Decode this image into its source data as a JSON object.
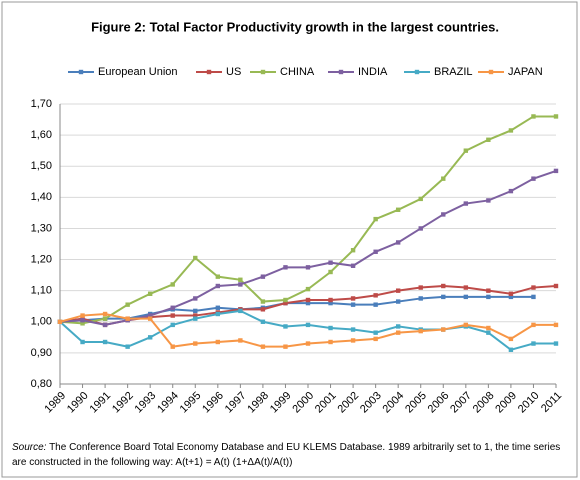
{
  "chart_data": {
    "type": "line",
    "title": "Figure 2: Total Factor Productivity growth in the largest countries.",
    "categories": [
      "1989",
      "1990",
      "1991",
      "1992",
      "1993",
      "1994",
      "1995",
      "1996",
      "1997",
      "1998",
      "1999",
      "2000",
      "2001",
      "2002",
      "2003",
      "2004",
      "2005",
      "2006",
      "2007",
      "2008",
      "2009",
      "2010",
      "2011"
    ],
    "series": [
      {
        "name": "European Union",
        "color": "#4a7ebb",
        "values": [
          1.0,
          1.005,
          1.01,
          1.01,
          1.025,
          1.04,
          1.035,
          1.045,
          1.04,
          1.045,
          1.06,
          1.06,
          1.06,
          1.055,
          1.055,
          1.065,
          1.075,
          1.08,
          1.08,
          1.08,
          1.08,
          1.08,
          null
        ]
      },
      {
        "name": "US",
        "color": "#be4b48",
        "values": [
          1.0,
          1.01,
          0.99,
          1.005,
          1.015,
          1.02,
          1.02,
          1.03,
          1.04,
          1.04,
          1.06,
          1.07,
          1.07,
          1.075,
          1.085,
          1.1,
          1.11,
          1.115,
          1.11,
          1.1,
          1.09,
          1.11,
          1.115
        ]
      },
      {
        "name": "CHINA",
        "color": "#98b954",
        "values": [
          1.0,
          0.995,
          1.01,
          1.055,
          1.09,
          1.12,
          1.205,
          1.145,
          1.135,
          1.065,
          1.07,
          1.105,
          1.16,
          1.23,
          1.33,
          1.36,
          1.395,
          1.46,
          1.55,
          1.585,
          1.615,
          1.66,
          1.66
        ]
      },
      {
        "name": "INDIA",
        "color": "#7d60a0",
        "values": [
          1.0,
          1.005,
          0.99,
          1.005,
          1.02,
          1.045,
          1.075,
          1.115,
          1.12,
          1.145,
          1.175,
          1.175,
          1.19,
          1.18,
          1.225,
          1.255,
          1.3,
          1.345,
          1.38,
          1.39,
          1.42,
          1.46,
          1.485
        ]
      },
      {
        "name": "BRAZIL",
        "color": "#46aac5",
        "values": [
          1.0,
          0.935,
          0.935,
          0.92,
          0.95,
          0.99,
          1.01,
          1.025,
          1.035,
          1.0,
          0.985,
          0.99,
          0.98,
          0.975,
          0.965,
          0.985,
          0.975,
          0.975,
          0.985,
          0.965,
          0.91,
          0.93,
          0.93
        ]
      },
      {
        "name": "JAPAN",
        "color": "#f79646",
        "values": [
          1.0,
          1.02,
          1.025,
          1.01,
          1.01,
          0.92,
          0.93,
          0.935,
          0.94,
          0.92,
          0.92,
          0.93,
          0.935,
          0.94,
          0.945,
          0.965,
          0.97,
          0.975,
          0.99,
          0.98,
          0.945,
          0.99,
          0.99
        ]
      }
    ],
    "ylim": [
      0.8,
      1.7
    ],
    "yticks": [
      {
        "value": 0.8,
        "label": "0,80"
      },
      {
        "value": 0.9,
        "label": "0,90"
      },
      {
        "value": 1.0,
        "label": "1,00"
      },
      {
        "value": 1.1,
        "label": "1,10"
      },
      {
        "value": 1.2,
        "label": "1,20"
      },
      {
        "value": 1.3,
        "label": "1,30"
      },
      {
        "value": 1.4,
        "label": "1,40"
      },
      {
        "value": 1.5,
        "label": "1,50"
      },
      {
        "value": 1.6,
        "label": "1,60"
      },
      {
        "value": 1.7,
        "label": "1,70"
      }
    ],
    "grid": true,
    "legend": "top",
    "source_label": "Source:",
    "source_text": "The Conference Board Total Economy Database and EU KLEMS Database. 1989 arbitrarily set to 1, the time series are constructed in the following way: A(t+1) = A(t) (1+ΔA(t)/A(t))"
  }
}
